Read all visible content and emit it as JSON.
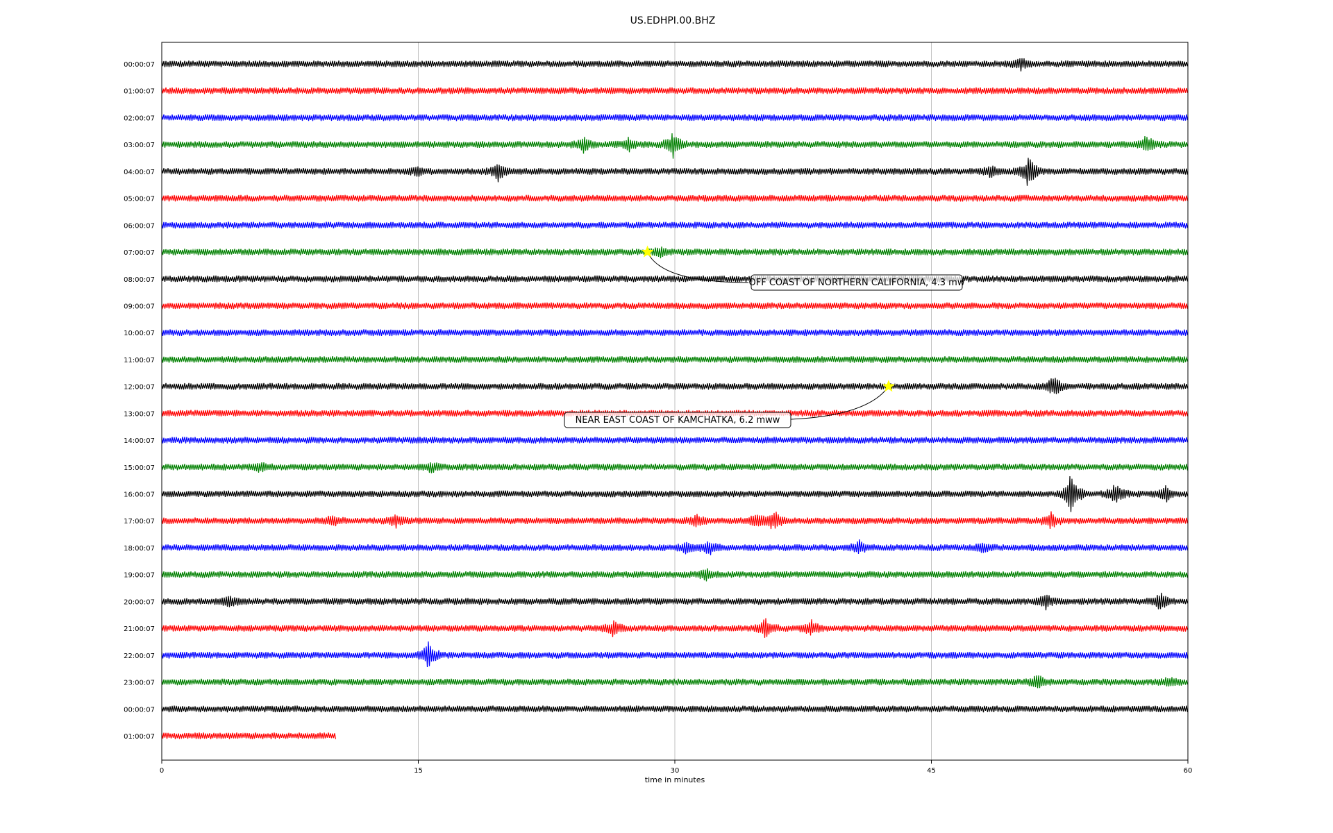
{
  "chart_data": {
    "type": "line",
    "title": "US.EDHPI.00.BHZ",
    "xlabel": "time in minutes",
    "ylabel": "",
    "xlim": [
      0,
      60
    ],
    "x_ticks": [
      "0",
      "15",
      "30",
      "45",
      "60"
    ],
    "x_tick_values": [
      0,
      15,
      30,
      45,
      60
    ],
    "grid": "vertical",
    "row_labels": [
      "00:00:07",
      "01:00:07",
      "02:00:07",
      "03:00:07",
      "04:00:07",
      "05:00:07",
      "06:00:07",
      "07:00:07",
      "08:00:07",
      "09:00:07",
      "10:00:07",
      "11:00:07",
      "12:00:07",
      "13:00:07",
      "14:00:07",
      "15:00:07",
      "16:00:07",
      "17:00:07",
      "18:00:07",
      "19:00:07",
      "20:00:07",
      "21:00:07",
      "22:00:07",
      "23:00:07",
      "00:00:07",
      "01:00:07"
    ],
    "row_colors": [
      "#000000",
      "#ff0000",
      "#0000ff",
      "#008000"
    ],
    "last_row_end_minute": 10.2,
    "events": [
      {
        "label": "OFF COAST OF NORTHERN CALIFORNIA, 4.3 mw",
        "row": 7,
        "minute": 28.4,
        "marker": "star",
        "marker_color": "#ffff00"
      },
      {
        "label": "NEAR EAST COAST OF KAMCHATKA, 6.2 mww",
        "row": 12,
        "minute": 42.5,
        "marker": "star",
        "marker_color": "#ffff00"
      }
    ],
    "bursts": [
      {
        "row": 0,
        "minute": 50.2,
        "amplitude": 0.4
      },
      {
        "row": 3,
        "minute": 24.7,
        "amplitude": 0.5
      },
      {
        "row": 3,
        "minute": 27.3,
        "amplitude": 0.4
      },
      {
        "row": 3,
        "minute": 29.9,
        "amplitude": 0.9
      },
      {
        "row": 3,
        "minute": 57.6,
        "amplitude": 0.6
      },
      {
        "row": 4,
        "minute": 19.7,
        "amplitude": 0.7
      },
      {
        "row": 4,
        "minute": 14.9,
        "amplitude": 0.3
      },
      {
        "row": 4,
        "minute": 48.5,
        "amplitude": 0.4
      },
      {
        "row": 4,
        "minute": 50.7,
        "amplitude": 1.2
      },
      {
        "row": 7,
        "minute": 29.2,
        "amplitude": 0.3
      },
      {
        "row": 12,
        "minute": 52.2,
        "amplitude": 0.7
      },
      {
        "row": 15,
        "minute": 5.8,
        "amplitude": 0.3
      },
      {
        "row": 15,
        "minute": 15.8,
        "amplitude": 0.3
      },
      {
        "row": 16,
        "minute": 53.2,
        "amplitude": 1.7
      },
      {
        "row": 16,
        "minute": 55.8,
        "amplitude": 0.8
      },
      {
        "row": 16,
        "minute": 58.7,
        "amplitude": 0.5
      },
      {
        "row": 17,
        "minute": 10.0,
        "amplitude": 0.3
      },
      {
        "row": 17,
        "minute": 13.7,
        "amplitude": 0.4
      },
      {
        "row": 17,
        "minute": 31.3,
        "amplitude": 0.4
      },
      {
        "row": 17,
        "minute": 34.8,
        "amplitude": 0.4
      },
      {
        "row": 17,
        "minute": 35.8,
        "amplitude": 0.7
      },
      {
        "row": 17,
        "minute": 52.0,
        "amplitude": 0.5
      },
      {
        "row": 18,
        "minute": 30.7,
        "amplitude": 0.4
      },
      {
        "row": 18,
        "minute": 32.0,
        "amplitude": 0.5
      },
      {
        "row": 18,
        "minute": 40.8,
        "amplitude": 0.4
      },
      {
        "row": 18,
        "minute": 48.0,
        "amplitude": 0.3
      },
      {
        "row": 19,
        "minute": 31.8,
        "amplitude": 0.4
      },
      {
        "row": 20,
        "minute": 4.0,
        "amplitude": 0.4
      },
      {
        "row": 20,
        "minute": 51.7,
        "amplitude": 0.5
      },
      {
        "row": 20,
        "minute": 58.4,
        "amplitude": 0.6
      },
      {
        "row": 21,
        "minute": 26.4,
        "amplitude": 0.5
      },
      {
        "row": 21,
        "minute": 35.3,
        "amplitude": 0.6
      },
      {
        "row": 21,
        "minute": 38.0,
        "amplitude": 0.5
      },
      {
        "row": 22,
        "minute": 15.6,
        "amplitude": 1.0
      },
      {
        "row": 23,
        "minute": 51.2,
        "amplitude": 0.5
      },
      {
        "row": 23,
        "minute": 58.9,
        "amplitude": 0.3
      }
    ]
  }
}
